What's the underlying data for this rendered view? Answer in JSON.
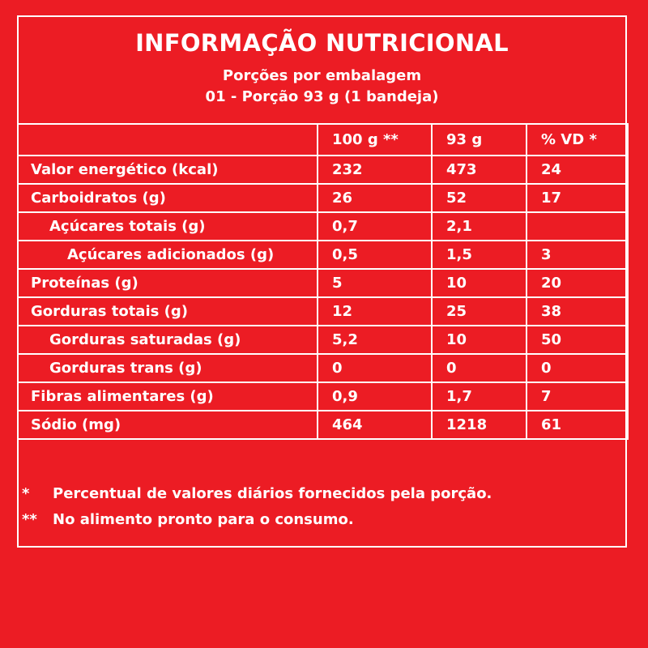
{
  "title": "INFORMAÇÃO NUTRICIONAL",
  "servings_line": "Porções por embalagem",
  "portion_line": "01 - Porção 93 g (1 bandeja)",
  "table": {
    "headers": [
      "",
      "100 g **",
      "93 g",
      "% VD *"
    ],
    "rows": [
      {
        "label": "Valor energético (kcal)",
        "per100": "232",
        "portion": "473",
        "vd": "24"
      },
      {
        "label": "Carboidratos (g)",
        "per100": "26",
        "portion": "52",
        "vd": "17"
      },
      {
        "label": "Açúcares totais (g)",
        "per100": "0,7",
        "portion": "2,1",
        "vd": ""
      },
      {
        "label": "Açúcares adicionados (g)",
        "per100": "0,5",
        "portion": "1,5",
        "vd": "3"
      },
      {
        "label": "Proteínas (g)",
        "per100": "5",
        "portion": "10",
        "vd": "20"
      },
      {
        "label": "Gorduras totais (g)",
        "per100": "12",
        "portion": "25",
        "vd": "38"
      },
      {
        "label": "Gorduras saturadas (g)",
        "per100": "5,2",
        "portion": "10",
        "vd": "50"
      },
      {
        "label": "Gorduras trans (g)",
        "per100": "0",
        "portion": "0",
        "vd": "0"
      },
      {
        "label": "Fibras alimentares (g)",
        "per100": "0,9",
        "portion": "1,7",
        "vd": "7"
      },
      {
        "label": "Sódio (mg)",
        "per100": "464",
        "portion": "1218",
        "vd": "61"
      }
    ]
  },
  "footnotes": [
    {
      "mark": "*",
      "text": "Percentual de valores diários fornecidos pela porção."
    },
    {
      "mark": "**",
      "text": "No alimento pronto para o consumo."
    }
  ],
  "colors": {
    "background": "#ec1c24",
    "foreground": "#ffffff"
  }
}
